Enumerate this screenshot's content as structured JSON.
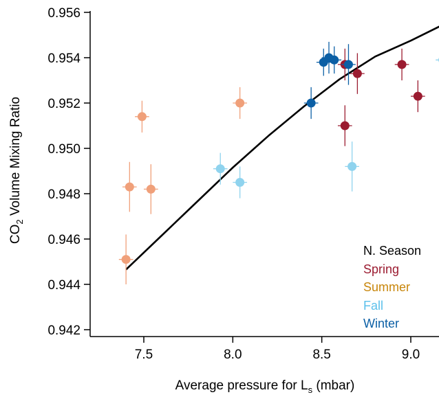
{
  "chart_data": {
    "type": "scatter",
    "title": "",
    "xlabel": "Average pressure for L",
    "xlabel_sub": "s",
    "xlabel_unit": " (mbar)",
    "ylabel_prefix": "CO",
    "ylabel_sub": "2",
    "ylabel_suffix": " Volume Mixing Ratio",
    "xlim": [
      7.1,
      9.2
    ],
    "ylim": [
      0.9415,
      0.9562
    ],
    "x_ticks": [
      7.5,
      8.0,
      8.5,
      9.0
    ],
    "x_tick_labels": [
      "7.5",
      "8.0",
      "8.5",
      "9.0"
    ],
    "y_ticks": [
      0.942,
      0.944,
      0.946,
      0.948,
      0.95,
      0.952,
      0.954,
      0.956
    ],
    "y_tick_labels": [
      "0.942",
      "0.944",
      "0.946",
      "0.948",
      "0.950",
      "0.952",
      "0.954",
      "0.956"
    ],
    "grid": false,
    "legend": {
      "title": "N. Season",
      "placement": "bottom-right",
      "entries": [
        "Spring",
        "Summer",
        "Fall",
        "Winter"
      ]
    },
    "colors": {
      "Spring": "#9b1b30",
      "Summer": "#c8860b",
      "Summer_marker": "#f0a07a",
      "Fall": "#8fd3ee",
      "Fall_text": "#5bc0eb",
      "Winter": "#0b5fa5",
      "Fit": "#000000"
    },
    "series": [
      {
        "name": "Spring",
        "points": [
          {
            "x": 8.63,
            "y": 0.9537,
            "xerr": 0.04,
            "yerr": 0.0007
          },
          {
            "x": 8.7,
            "y": 0.9533,
            "xerr": 0.04,
            "yerr": 0.0009
          },
          {
            "x": 8.63,
            "y": 0.951,
            "xerr": 0.04,
            "yerr": 0.0009
          },
          {
            "x": 8.95,
            "y": 0.9537,
            "xerr": 0.04,
            "yerr": 0.0007
          },
          {
            "x": 9.04,
            "y": 0.9523,
            "xerr": 0.04,
            "yerr": 0.0007
          }
        ]
      },
      {
        "name": "Summer",
        "points": [
          {
            "x": 7.49,
            "y": 0.9514,
            "xerr": 0.04,
            "yerr": 0.0007
          },
          {
            "x": 8.04,
            "y": 0.952,
            "xerr": 0.04,
            "yerr": 0.0007
          },
          {
            "x": 7.42,
            "y": 0.9483,
            "xerr": 0.04,
            "yerr": 0.0011
          },
          {
            "x": 7.54,
            "y": 0.9482,
            "xerr": 0.04,
            "yerr": 0.0011
          },
          {
            "x": 7.4,
            "y": 0.9451,
            "xerr": 0.04,
            "yerr": 0.0011
          }
        ]
      },
      {
        "name": "Fall",
        "points": [
          {
            "x": 7.93,
            "y": 0.9491,
            "xerr": 0.04,
            "yerr": 0.0007
          },
          {
            "x": 8.04,
            "y": 0.9485,
            "xerr": 0.04,
            "yerr": 0.0007
          },
          {
            "x": 8.67,
            "y": 0.9492,
            "xerr": 0.04,
            "yerr": 0.0011
          },
          {
            "x": 9.18,
            "y": 0.9539,
            "xerr": 0.04,
            "yerr": 0.0007
          }
        ]
      },
      {
        "name": "Winter",
        "points": [
          {
            "x": 8.51,
            "y": 0.9538,
            "xerr": 0.04,
            "yerr": 0.0006
          },
          {
            "x": 8.54,
            "y": 0.954,
            "xerr": 0.04,
            "yerr": 0.0007
          },
          {
            "x": 8.57,
            "y": 0.9539,
            "xerr": 0.04,
            "yerr": 0.0006
          },
          {
            "x": 8.65,
            "y": 0.9537,
            "xerr": 0.04,
            "yerr": 0.0009
          },
          {
            "x": 8.44,
            "y": 0.952,
            "xerr": 0.04,
            "yerr": 0.0007
          }
        ]
      }
    ],
    "fit_line": {
      "x": [
        7.4,
        7.6,
        7.8,
        8.0,
        8.2,
        8.4,
        8.6,
        8.8,
        9.0,
        9.18
      ],
      "y": [
        0.94465,
        0.94615,
        0.94765,
        0.94915,
        0.95055,
        0.95185,
        0.95305,
        0.95405,
        0.95475,
        0.95545
      ]
    }
  }
}
